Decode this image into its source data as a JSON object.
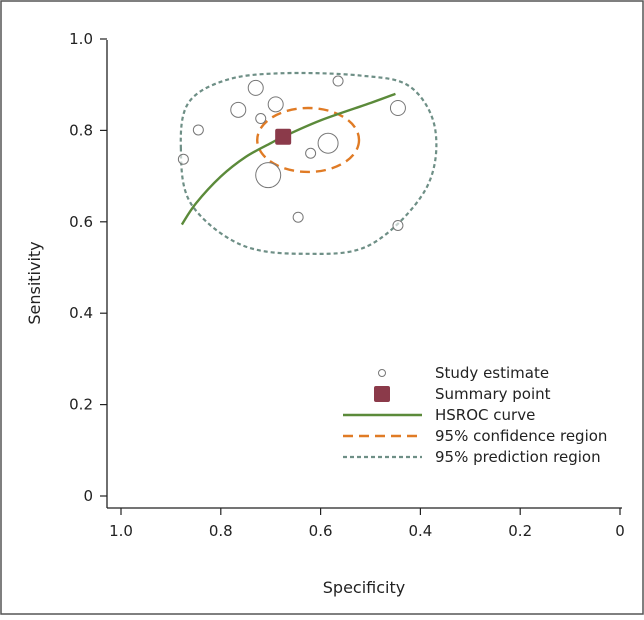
{
  "chart_data": {
    "type": "scatter",
    "xlabel": "Specificity",
    "ylabel": "Sensitivity",
    "xlim": [
      1.0,
      0.0
    ],
    "ylim": [
      0.0,
      1.0
    ],
    "x_reversed": true,
    "x_ticks": [
      1.0,
      0.8,
      0.6,
      0.4,
      0.2,
      0.0
    ],
    "x_tick_labels": [
      "1.0",
      "0.8",
      "0.6",
      "0.4",
      "0.2",
      "0"
    ],
    "y_ticks": [
      0.0,
      0.2,
      0.4,
      0.6,
      0.8,
      1.0
    ],
    "y_tick_labels": [
      "0",
      "0.2",
      "0.4",
      "0.6",
      "0.8",
      "1.0"
    ],
    "grid": false,
    "legend_position": "bottom-right",
    "legend": [
      {
        "key": "study",
        "label": "Study estimate"
      },
      {
        "key": "summary",
        "label": "Summary point"
      },
      {
        "key": "hsroc",
        "label": "HSROC curve"
      },
      {
        "key": "confidence",
        "label": "95% confidence region"
      },
      {
        "key": "prediction",
        "label": "95% prediction region"
      }
    ],
    "study_estimates": [
      {
        "x": 0.73,
        "y": 0.893,
        "size": 2
      },
      {
        "x": 0.565,
        "y": 0.908,
        "size": 1
      },
      {
        "x": 0.69,
        "y": 0.857,
        "size": 2
      },
      {
        "x": 0.765,
        "y": 0.845,
        "size": 2
      },
      {
        "x": 0.72,
        "y": 0.826,
        "size": 1
      },
      {
        "x": 0.845,
        "y": 0.801,
        "size": 1
      },
      {
        "x": 0.445,
        "y": 0.849,
        "size": 2
      },
      {
        "x": 0.875,
        "y": 0.737,
        "size": 1
      },
      {
        "x": 0.62,
        "y": 0.75,
        "size": 1
      },
      {
        "x": 0.585,
        "y": 0.772,
        "size": 3
      },
      {
        "x": 0.705,
        "y": 0.702,
        "size": 4
      },
      {
        "x": 0.645,
        "y": 0.61,
        "size": 1
      },
      {
        "x": 0.445,
        "y": 0.592,
        "size": 1
      }
    ],
    "summary_point": {
      "x": 0.675,
      "y": 0.786
    },
    "hsroc_curve": [
      {
        "x": 0.878,
        "y": 0.594
      },
      {
        "x": 0.85,
        "y": 0.64
      },
      {
        "x": 0.8,
        "y": 0.699
      },
      {
        "x": 0.75,
        "y": 0.742
      },
      {
        "x": 0.7,
        "y": 0.772
      },
      {
        "x": 0.675,
        "y": 0.786
      },
      {
        "x": 0.6,
        "y": 0.822
      },
      {
        "x": 0.5,
        "y": 0.86
      },
      {
        "x": 0.45,
        "y": 0.88
      }
    ],
    "confidence_region": {
      "cx": 0.625,
      "cy": 0.779,
      "rx": 0.102,
      "ry": 0.07
    },
    "prediction_region": [
      {
        "x": 0.88,
        "y": 0.76
      },
      {
        "x": 0.865,
        "y": 0.86
      },
      {
        "x": 0.79,
        "y": 0.91
      },
      {
        "x": 0.68,
        "y": 0.925
      },
      {
        "x": 0.52,
        "y": 0.92
      },
      {
        "x": 0.42,
        "y": 0.895
      },
      {
        "x": 0.37,
        "y": 0.8
      },
      {
        "x": 0.39,
        "y": 0.67
      },
      {
        "x": 0.5,
        "y": 0.55
      },
      {
        "x": 0.63,
        "y": 0.53
      },
      {
        "x": 0.76,
        "y": 0.55
      },
      {
        "x": 0.86,
        "y": 0.64
      }
    ],
    "colors": {
      "study": "#777777",
      "summary": "#8b3a4a",
      "hsroc": "#5b8a3a",
      "confidence": "#e07b25",
      "prediction": "#6e8f86",
      "axis": "#222222",
      "frame": "#555555"
    }
  }
}
